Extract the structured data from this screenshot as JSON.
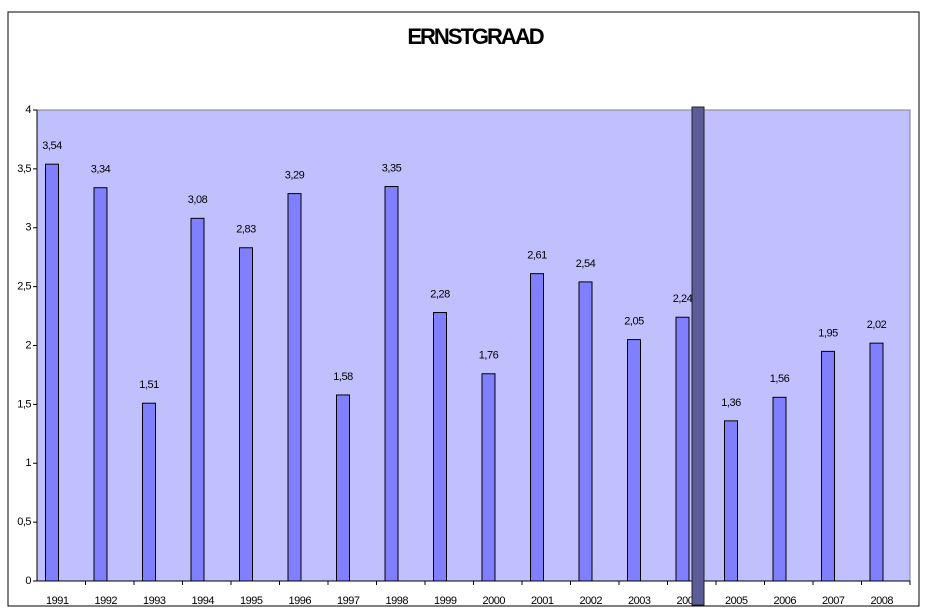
{
  "chart_data": {
    "type": "bar",
    "title": "ERNSTGRAAD",
    "categories": [
      "1991",
      "1992",
      "1993",
      "1994",
      "1995",
      "1996",
      "1997",
      "1998",
      "1999",
      "2000",
      "2001",
      "2002",
      "2003",
      "2004",
      "2005",
      "2006",
      "2007",
      "2008"
    ],
    "values": [
      3.54,
      3.34,
      1.51,
      3.08,
      2.83,
      3.29,
      1.58,
      3.35,
      2.28,
      1.76,
      2.61,
      2.54,
      2.05,
      2.24,
      1.36,
      1.56,
      1.95,
      2.02
    ],
    "value_labels": [
      "3,54",
      "3,34",
      "1,51",
      "3,08",
      "2,83",
      "3,29",
      "1,58",
      "3,35",
      "2,28",
      "1,76",
      "2,61",
      "2,54",
      "2,05",
      "2,24",
      "1,36",
      "1,56",
      "1,95",
      "2,02"
    ],
    "color": "#8080ff",
    "ylim": [
      0,
      4
    ],
    "yticks": [
      0,
      {
        "value": 0.5,
        "label": "0,5"
      },
      1,
      {
        "value": 1.5,
        "label": "1,5"
      },
      2,
      {
        "value": 2.5,
        "label": "2,5"
      },
      3,
      {
        "value": 3.5,
        "label": "3,5"
      },
      4
    ]
  }
}
